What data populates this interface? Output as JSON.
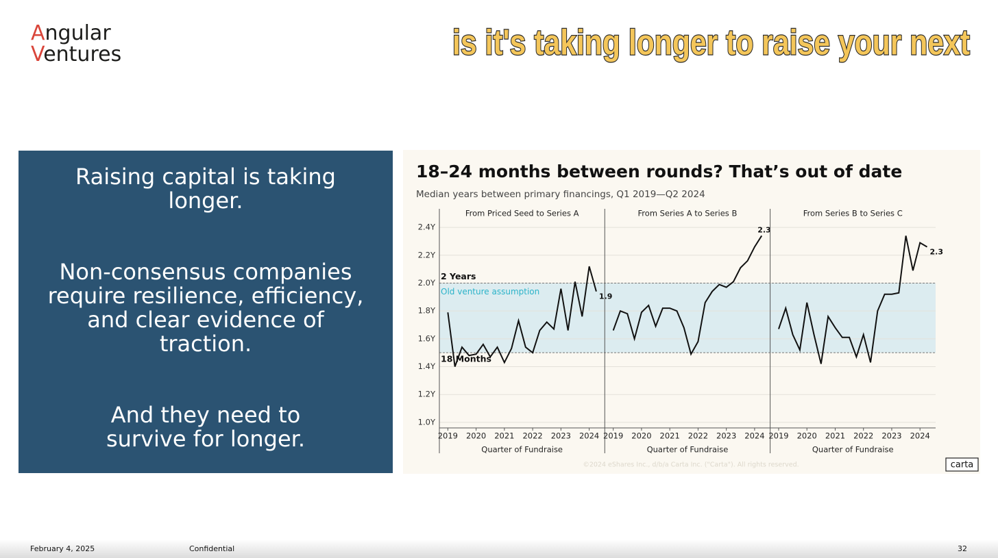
{
  "logo": {
    "lines": [
      {
        "initial": "A",
        "rest": "ngular"
      },
      {
        "initial": "V",
        "rest": "entures"
      }
    ]
  },
  "caption": "is it's taking longer to raise your next",
  "left_panel": {
    "paragraphs": [
      [
        "Raising capital is taking",
        "longer."
      ],
      [
        "Non-consensus companies",
        "require resilience, efficiency,",
        "and clear evidence of",
        "traction."
      ],
      [
        "And they need to",
        "survive for longer."
      ]
    ]
  },
  "chart_data": {
    "type": "line",
    "title": "18–24 months between rounds? That’s out of date",
    "subtitle": "Median years between primary financings, Q1 2019—Q2 2024",
    "xlabel": "Quarter of Fundraise",
    "x": [
      2019,
      2019.25,
      2019.5,
      2019.75,
      2020,
      2020.25,
      2020.5,
      2020.75,
      2021,
      2021.25,
      2021.5,
      2021.75,
      2022,
      2022.25,
      2022.5,
      2022.75,
      2023,
      2023.25,
      2023.5,
      2023.75,
      2024,
      2024.25
    ],
    "xlim": [
      2018.7,
      2024.55
    ],
    "xticks": [
      2019,
      2020,
      2021,
      2022,
      2023,
      2024
    ],
    "ylim": [
      0.96,
      2.44
    ],
    "yticks": [
      {
        "value": 1.0,
        "label": "1.0Y"
      },
      {
        "value": 1.2,
        "label": "1.2Y"
      },
      {
        "value": 1.4,
        "label": "1.4Y"
      },
      {
        "value": 1.6,
        "label": "1.6Y"
      },
      {
        "value": 1.8,
        "label": "1.8Y"
      },
      {
        "value": 2.0,
        "label": "2.0Y"
      },
      {
        "value": 2.2,
        "label": "2.2Y"
      },
      {
        "value": 2.4,
        "label": "2.4Y"
      }
    ],
    "grid": true,
    "color": "#111111",
    "band": {
      "from": 1.5,
      "to": 2.0,
      "color": "#dcecf0",
      "label": "Old venture assumption",
      "upper_label": "2 Years",
      "lower_label": "18 Months"
    },
    "panels": [
      {
        "title": "From Priced Seed to Series A",
        "values": [
          1.79,
          1.4,
          1.54,
          1.48,
          1.49,
          1.56,
          1.47,
          1.54,
          1.43,
          1.53,
          1.73,
          1.54,
          1.5,
          1.66,
          1.72,
          1.67,
          1.96,
          1.66,
          2.01,
          1.76,
          2.12,
          1.94
        ],
        "value_labels": [
          null,
          null,
          null,
          null,
          null,
          null,
          null,
          null,
          null,
          null,
          null,
          null,
          null,
          null,
          null,
          null,
          null,
          null,
          null,
          null,
          null,
          "1.9"
        ]
      },
      {
        "title": "From Series A to Series B",
        "values": [
          1.66,
          1.8,
          1.78,
          1.6,
          1.79,
          1.84,
          1.69,
          1.82,
          1.82,
          1.8,
          1.68,
          1.49,
          1.58,
          1.86,
          1.94,
          1.99,
          1.97,
          2.01,
          2.11,
          2.16,
          2.26,
          2.34
        ],
        "value_labels": [
          null,
          null,
          null,
          null,
          null,
          null,
          null,
          null,
          null,
          null,
          null,
          null,
          null,
          null,
          null,
          null,
          null,
          null,
          null,
          null,
          null,
          "2.3"
        ]
      },
      {
        "title": "From Series B to Series C",
        "values": [
          1.67,
          1.82,
          1.63,
          1.52,
          1.86,
          1.63,
          1.42,
          1.76,
          1.68,
          1.61,
          1.61,
          1.47,
          1.63,
          1.43,
          1.8,
          1.92,
          1.92,
          1.93,
          2.34,
          2.09,
          2.29,
          2.26
        ],
        "value_labels": [
          null,
          null,
          null,
          null,
          null,
          null,
          null,
          null,
          null,
          null,
          null,
          null,
          null,
          null,
          null,
          null,
          null,
          null,
          null,
          null,
          null,
          "2.3"
        ]
      }
    ],
    "copyright": "©2024 eShares Inc., d/b/a Carta Inc. (\"Carta\"). All rights reserved.",
    "source_logo": "carta"
  },
  "footer": {
    "date": "February 4, 2025",
    "label": "Confidential",
    "page": 32
  }
}
